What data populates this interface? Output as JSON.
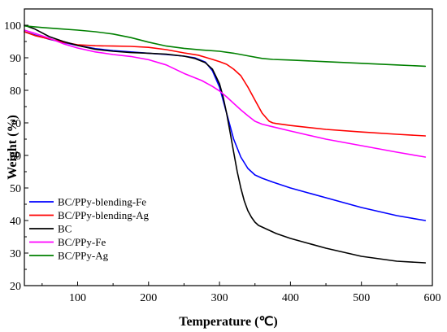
{
  "chart_data": {
    "type": "line",
    "xlabel": "Temperature (℃)",
    "ylabel": "Weight (%)",
    "xlim": [
      25,
      600
    ],
    "ylim": [
      20,
      105
    ],
    "xticks": [
      100,
      200,
      300,
      400,
      500,
      600
    ],
    "yticks": [
      20,
      30,
      40,
      50,
      60,
      70,
      80,
      90,
      100
    ],
    "grid": false,
    "legend_position": "bottom-left",
    "series": [
      {
        "name": "BC/PPy-blending-Fe",
        "color": "#0000ff",
        "x": [
          25,
          40,
          60,
          80,
          100,
          125,
          150,
          175,
          200,
          225,
          250,
          265,
          280,
          290,
          300,
          310,
          320,
          330,
          340,
          350,
          360,
          375,
          400,
          450,
          500,
          550,
          590
        ],
        "y": [
          98,
          97,
          95.7,
          94.7,
          93.8,
          92.8,
          92.2,
          91.8,
          91.4,
          91,
          90.5,
          90,
          88.7,
          86,
          81,
          73,
          65,
          59.5,
          56,
          54,
          53,
          51.8,
          50,
          47,
          44,
          41.5,
          40
        ]
      },
      {
        "name": "BC/PPy-blending-Ag",
        "color": "#ff0000",
        "x": [
          25,
          40,
          60,
          80,
          100,
          125,
          150,
          175,
          200,
          225,
          250,
          270,
          290,
          300,
          310,
          320,
          330,
          340,
          350,
          360,
          370,
          375,
          380,
          400,
          450,
          500,
          550,
          590
        ],
        "y": [
          98,
          96.8,
          95.8,
          94.8,
          94,
          93.7,
          93.6,
          93.5,
          93.2,
          92.5,
          91.5,
          90.8,
          89.5,
          88.8,
          88,
          86.5,
          84.5,
          81,
          77,
          73,
          70.5,
          70,
          69.8,
          69.2,
          68,
          67.2,
          66.5,
          66
        ]
      },
      {
        "name": "BC",
        "color": "#000000",
        "x": [
          25,
          40,
          60,
          80,
          100,
          125,
          150,
          175,
          200,
          225,
          250,
          265,
          280,
          290,
          300,
          305,
          310,
          315,
          320,
          325,
          330,
          335,
          340,
          345,
          350,
          355,
          360,
          370,
          380,
          400,
          450,
          500,
          550,
          590
        ],
        "y": [
          100,
          98.8,
          96.5,
          95,
          93.8,
          92.6,
          92,
          91.6,
          91.4,
          91.1,
          90.5,
          89.8,
          88.5,
          86.5,
          82,
          78,
          73,
          67,
          61,
          55,
          50,
          46,
          43,
          41,
          39.5,
          38.5,
          38,
          37,
          36,
          34.5,
          31.5,
          29,
          27.5,
          27
        ]
      },
      {
        "name": "BC/PPy-Fe",
        "color": "#ff00ff",
        "x": [
          25,
          40,
          60,
          80,
          100,
          125,
          150,
          175,
          200,
          225,
          250,
          275,
          290,
          300,
          310,
          320,
          330,
          340,
          350,
          360,
          375,
          400,
          450,
          500,
          550,
          590
        ],
        "y": [
          98.5,
          97.5,
          96,
          94.3,
          93,
          91.8,
          91,
          90.4,
          89.4,
          87.8,
          85.2,
          83,
          81.2,
          79.8,
          78,
          76,
          74,
          72.2,
          70.5,
          69.6,
          68.8,
          67.5,
          65,
          63,
          61,
          59.5
        ]
      },
      {
        "name": "BC/PPy-Ag",
        "color": "#008000",
        "x": [
          25,
          50,
          75,
          100,
          125,
          150,
          175,
          200,
          225,
          250,
          275,
          300,
          320,
          340,
          360,
          375,
          400,
          450,
          500,
          550,
          590
        ],
        "y": [
          99.8,
          99.3,
          98.9,
          98.5,
          98,
          97.3,
          96.2,
          94.8,
          93.6,
          92.9,
          92.4,
          92,
          91.4,
          90.6,
          89.8,
          89.5,
          89.3,
          88.8,
          88.3,
          87.8,
          87.4
        ]
      }
    ]
  }
}
